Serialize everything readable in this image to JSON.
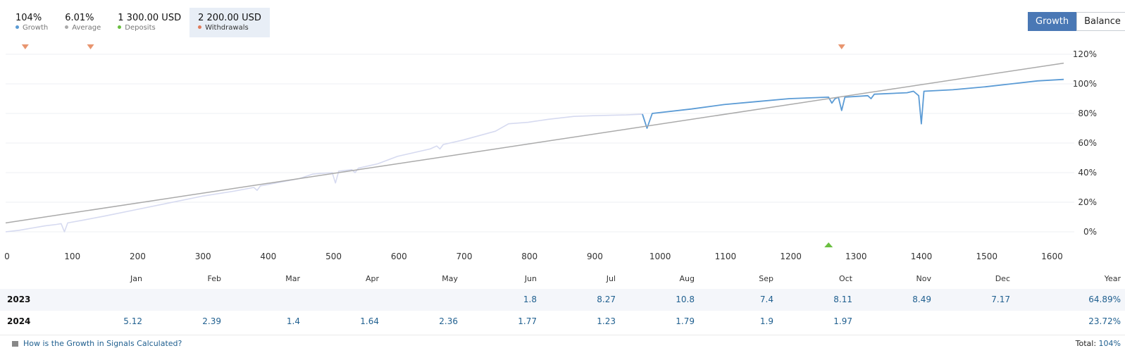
{
  "summary": [
    {
      "value": "104%",
      "label": "Growth",
      "color": "#5b9bd5"
    },
    {
      "value": "6.01%",
      "label": "Average",
      "color": "#aaaaaa"
    },
    {
      "value": "1 300.00 USD",
      "label": "Deposits",
      "color": "#6abf40"
    },
    {
      "value": "2 200.00 USD",
      "label": "Withdrawals",
      "color": "#e07b5a"
    }
  ],
  "toggle": {
    "growth": "Growth",
    "balance": "Balance"
  },
  "chart_data": {
    "type": "line",
    "title": "",
    "xlabel": "",
    "ylabel": "",
    "xlim": [
      0,
      1620
    ],
    "ylim": [
      -10,
      120
    ],
    "x_ticks": [
      0,
      100,
      200,
      300,
      400,
      500,
      600,
      700,
      800,
      900,
      1000,
      1100,
      1200,
      1300,
      1400,
      1500,
      1600
    ],
    "y_ticks": [
      0,
      20,
      40,
      60,
      80,
      100,
      120
    ],
    "y_tick_labels": [
      "0%",
      "20%",
      "40%",
      "60%",
      "80%",
      "100%",
      "120%"
    ],
    "grid": "horizontal",
    "series": [
      {
        "name": "Growth",
        "color": "#5b9bd5",
        "faded_color": "#d6daf0",
        "faded_until_x": 982,
        "points": [
          [
            0,
            0
          ],
          [
            20,
            1
          ],
          [
            40,
            2.5
          ],
          [
            60,
            4
          ],
          [
            78,
            5
          ],
          [
            85,
            5.5
          ],
          [
            90,
            0
          ],
          [
            95,
            6
          ],
          [
            120,
            8
          ],
          [
            150,
            10.5
          ],
          [
            200,
            15
          ],
          [
            250,
            19.5
          ],
          [
            300,
            24
          ],
          [
            350,
            27.5
          ],
          [
            380,
            30
          ],
          [
            385,
            28
          ],
          [
            390,
            31
          ],
          [
            420,
            33.5
          ],
          [
            450,
            36
          ],
          [
            470,
            39
          ],
          [
            500,
            40
          ],
          [
            505,
            33
          ],
          [
            510,
            41
          ],
          [
            530,
            42
          ],
          [
            535,
            40
          ],
          [
            540,
            43
          ],
          [
            570,
            46
          ],
          [
            600,
            51
          ],
          [
            650,
            56
          ],
          [
            660,
            58
          ],
          [
            665,
            56
          ],
          [
            670,
            59
          ],
          [
            700,
            62
          ],
          [
            750,
            68
          ],
          [
            770,
            73
          ],
          [
            800,
            74
          ],
          [
            830,
            76
          ],
          [
            870,
            78
          ],
          [
            900,
            78.5
          ],
          [
            950,
            79
          ],
          [
            975,
            79.5
          ],
          [
            982,
            70
          ],
          [
            990,
            80
          ],
          [
            1050,
            83
          ],
          [
            1100,
            86
          ],
          [
            1150,
            88
          ],
          [
            1200,
            90
          ],
          [
            1260,
            91
          ],
          [
            1265,
            87
          ],
          [
            1270,
            90
          ],
          [
            1275,
            91
          ],
          [
            1280,
            82
          ],
          [
            1285,
            91
          ],
          [
            1320,
            92
          ],
          [
            1325,
            90
          ],
          [
            1330,
            93
          ],
          [
            1380,
            94
          ],
          [
            1390,
            95
          ],
          [
            1398,
            92
          ],
          [
            1402,
            73
          ],
          [
            1406,
            95
          ],
          [
            1450,
            96
          ],
          [
            1500,
            98
          ],
          [
            1540,
            100
          ],
          [
            1580,
            102
          ],
          [
            1620,
            103
          ]
        ]
      },
      {
        "name": "Average",
        "color": "#aaaaaa",
        "points": [
          [
            0,
            6
          ],
          [
            1620,
            114
          ]
        ]
      }
    ],
    "withdrawal_marker_x": [
      30,
      130,
      1280
    ],
    "deposit_marker_x": [
      1260
    ]
  },
  "table": {
    "months": [
      "Jan",
      "Feb",
      "Mar",
      "Apr",
      "May",
      "Jun",
      "Jul",
      "Aug",
      "Sep",
      "Oct",
      "Nov",
      "Dec"
    ],
    "year_label": "Year",
    "rows": [
      {
        "year": "2023",
        "values": [
          "",
          "",
          "",
          "",
          "",
          "1.8",
          "8.27",
          "10.8",
          "7.4",
          "8.11",
          "8.49",
          "7.17"
        ],
        "total": "64.89%"
      },
      {
        "year": "2024",
        "values": [
          "5.12",
          "2.39",
          "1.4",
          "1.64",
          "2.36",
          "1.77",
          "1.23",
          "1.79",
          "1.9",
          "1.97",
          "",
          ""
        ],
        "total": "23.72%"
      }
    ]
  },
  "footer": {
    "link": "How is the Growth in Signals Calculated?",
    "total_label": "Total:",
    "total_value": "104%"
  }
}
